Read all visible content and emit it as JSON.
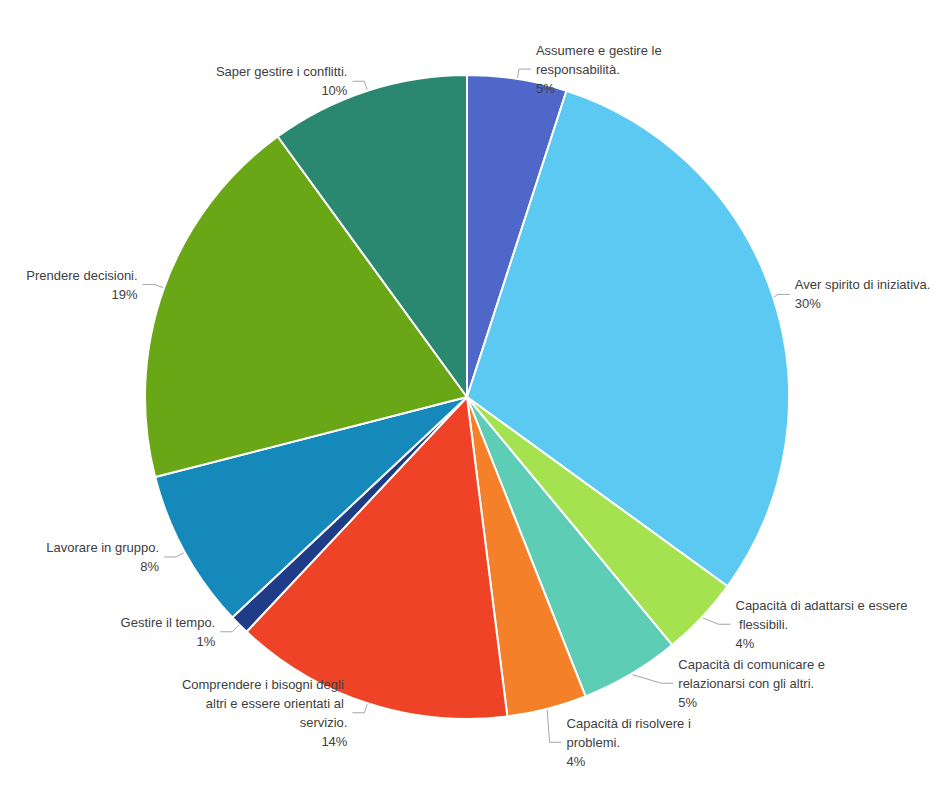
{
  "chart_data": {
    "type": "pie",
    "categories": [
      "Assumere e gestire le responsabilità.",
      "Aver spirito di iniziativa.",
      "Capacità di adattarsi e essere flessibili.",
      "Capacità di comunicare e relazionarsi con gli altri.",
      "Capacità di risolvere i problemi.",
      "Comprendere i bisogni degli altri e essere orientati al servizio.",
      "Gestire il tempo.",
      "Lavorare in gruppo.",
      "Prendere decisioni.",
      "Saper gestire i conflitti."
    ],
    "values": [
      5,
      30,
      4,
      5,
      4,
      14,
      1,
      8,
      19,
      10
    ],
    "value_labels": [
      "5%",
      "30%",
      "4%",
      "5%",
      "4%",
      "14%",
      "1%",
      "8%",
      "19%",
      "10%"
    ],
    "colors": [
      "#4f67c8",
      "#5bc9f2",
      "#a4e34f",
      "#5ecdb5",
      "#f5802a",
      "#ee4327",
      "#1f3c88",
      "#1589ba",
      "#6aa716",
      "#2a8870"
    ],
    "data_labels": true
  }
}
